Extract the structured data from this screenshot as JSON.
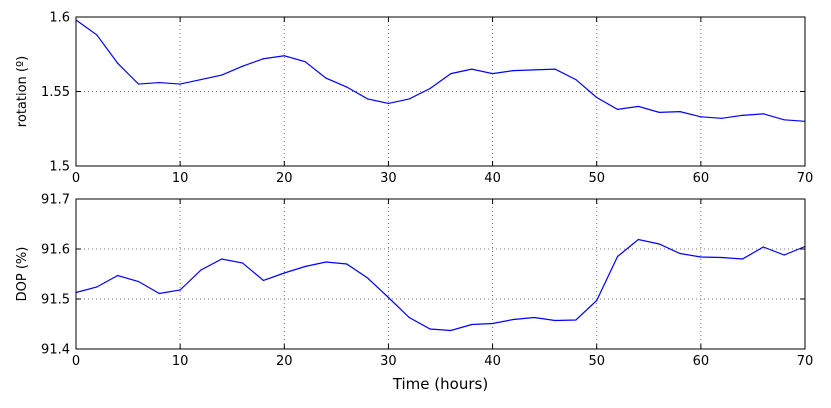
{
  "chart_data": [
    {
      "type": "line",
      "title": "",
      "xlabel": "",
      "ylabel": "rotation (º)",
      "xlim": [
        0,
        70
      ],
      "ylim": [
        1.5,
        1.6
      ],
      "xticks": [
        0,
        10,
        20,
        30,
        40,
        50,
        60,
        70
      ],
      "xtick_labels": [
        "0",
        "10",
        "20",
        "30",
        "40",
        "50",
        "60",
        "70"
      ],
      "yticks": [
        1.5,
        1.55,
        1.6
      ],
      "ytick_labels": [
        "1.5",
        "1.55",
        "1.6"
      ],
      "grid": true,
      "color": "#0000ff",
      "x": [
        0,
        2,
        4,
        6,
        8,
        10,
        12,
        14,
        16,
        18,
        20,
        22,
        24,
        26,
        28,
        30,
        32,
        34,
        36,
        38,
        40,
        42,
        44,
        46,
        48,
        50,
        52,
        54,
        56,
        58,
        60,
        62,
        64,
        66,
        68,
        70
      ],
      "y": [
        1.598,
        1.588,
        1.569,
        1.555,
        1.556,
        1.555,
        1.558,
        1.561,
        1.567,
        1.572,
        1.574,
        1.57,
        1.559,
        1.553,
        1.545,
        1.542,
        1.545,
        1.552,
        1.562,
        1.565,
        1.562,
        1.564,
        1.5645,
        1.565,
        1.558,
        1.546,
        1.538,
        1.54,
        1.536,
        1.5365,
        1.533,
        1.532,
        1.534,
        1.535,
        1.531,
        1.53
      ]
    },
    {
      "type": "line",
      "title": "",
      "xlabel": "Time (hours)",
      "ylabel": "DOP (%)",
      "xlim": [
        0,
        70
      ],
      "ylim": [
        91.4,
        91.7
      ],
      "xticks": [
        0,
        10,
        20,
        30,
        40,
        50,
        60,
        70
      ],
      "xtick_labels": [
        "0",
        "10",
        "20",
        "30",
        "40",
        "50",
        "60",
        "70"
      ],
      "yticks": [
        91.4,
        91.5,
        91.6,
        91.7
      ],
      "ytick_labels": [
        "91.4",
        "91.5",
        "91.6",
        "91.7"
      ],
      "grid": true,
      "color": "#0000ff",
      "x": [
        0,
        2,
        4,
        6,
        8,
        10,
        12,
        14,
        16,
        18,
        20,
        22,
        24,
        26,
        28,
        30,
        32,
        34,
        36,
        38,
        40,
        42,
        44,
        46,
        48,
        50,
        52,
        54,
        56,
        58,
        60,
        62,
        64,
        66,
        68,
        70
      ],
      "y": [
        91.513,
        91.524,
        91.547,
        91.535,
        91.511,
        91.518,
        91.558,
        91.58,
        91.572,
        91.537,
        91.552,
        91.565,
        91.574,
        91.57,
        91.542,
        91.503,
        91.463,
        91.44,
        91.437,
        91.449,
        91.451,
        91.459,
        91.463,
        91.457,
        91.458,
        91.497,
        91.585,
        91.619,
        91.61,
        91.591,
        91.584,
        91.583,
        91.58,
        91.604,
        91.588,
        91.605
      ]
    }
  ]
}
